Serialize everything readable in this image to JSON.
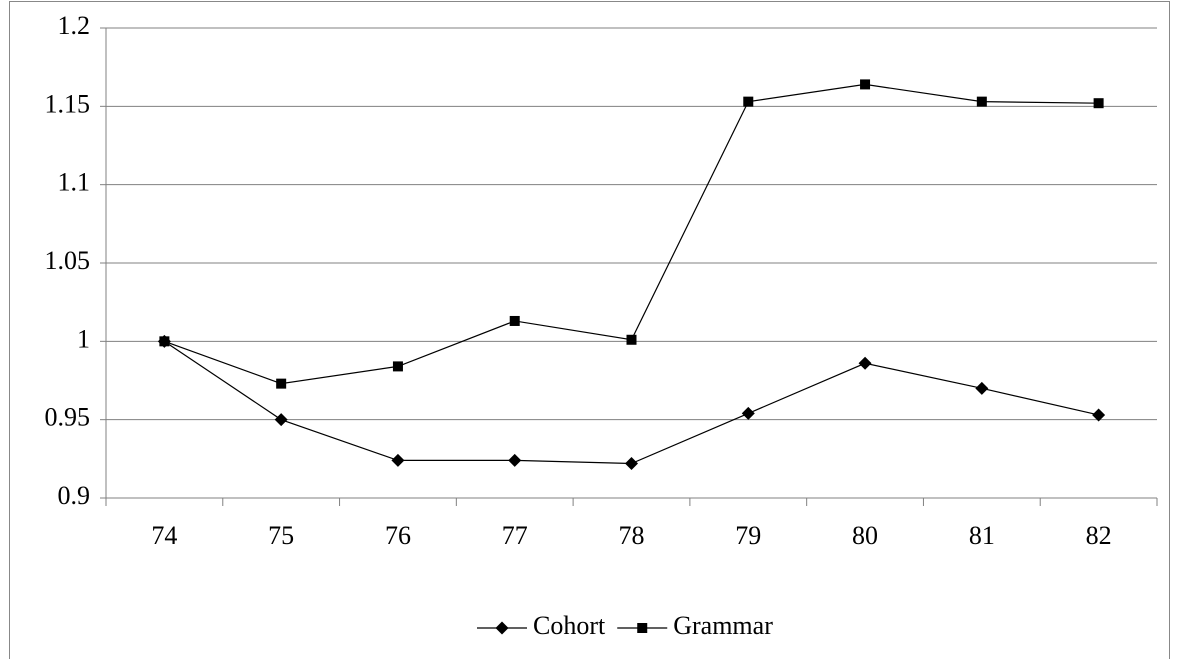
{
  "chart_data": {
    "type": "line",
    "categories": [
      "74",
      "75",
      "76",
      "77",
      "78",
      "79",
      "80",
      "81",
      "82"
    ],
    "series": [
      {
        "name": "Cohort",
        "color": "#000000",
        "marker": "diamond",
        "values": [
          1.0,
          0.95,
          0.924,
          0.924,
          0.922,
          0.954,
          0.986,
          0.97,
          0.953
        ]
      },
      {
        "name": "Grammar",
        "color": "#000000",
        "marker": "square",
        "values": [
          1.0,
          0.973,
          0.984,
          1.013,
          1.001,
          1.153,
          1.164,
          1.153,
          1.152
        ]
      }
    ],
    "ylim": [
      0.9,
      1.2
    ],
    "yticks": [
      0.9,
      0.95,
      1,
      1.05,
      1.1,
      1.15,
      1.2
    ],
    "grid": true,
    "legend": "bottom"
  }
}
